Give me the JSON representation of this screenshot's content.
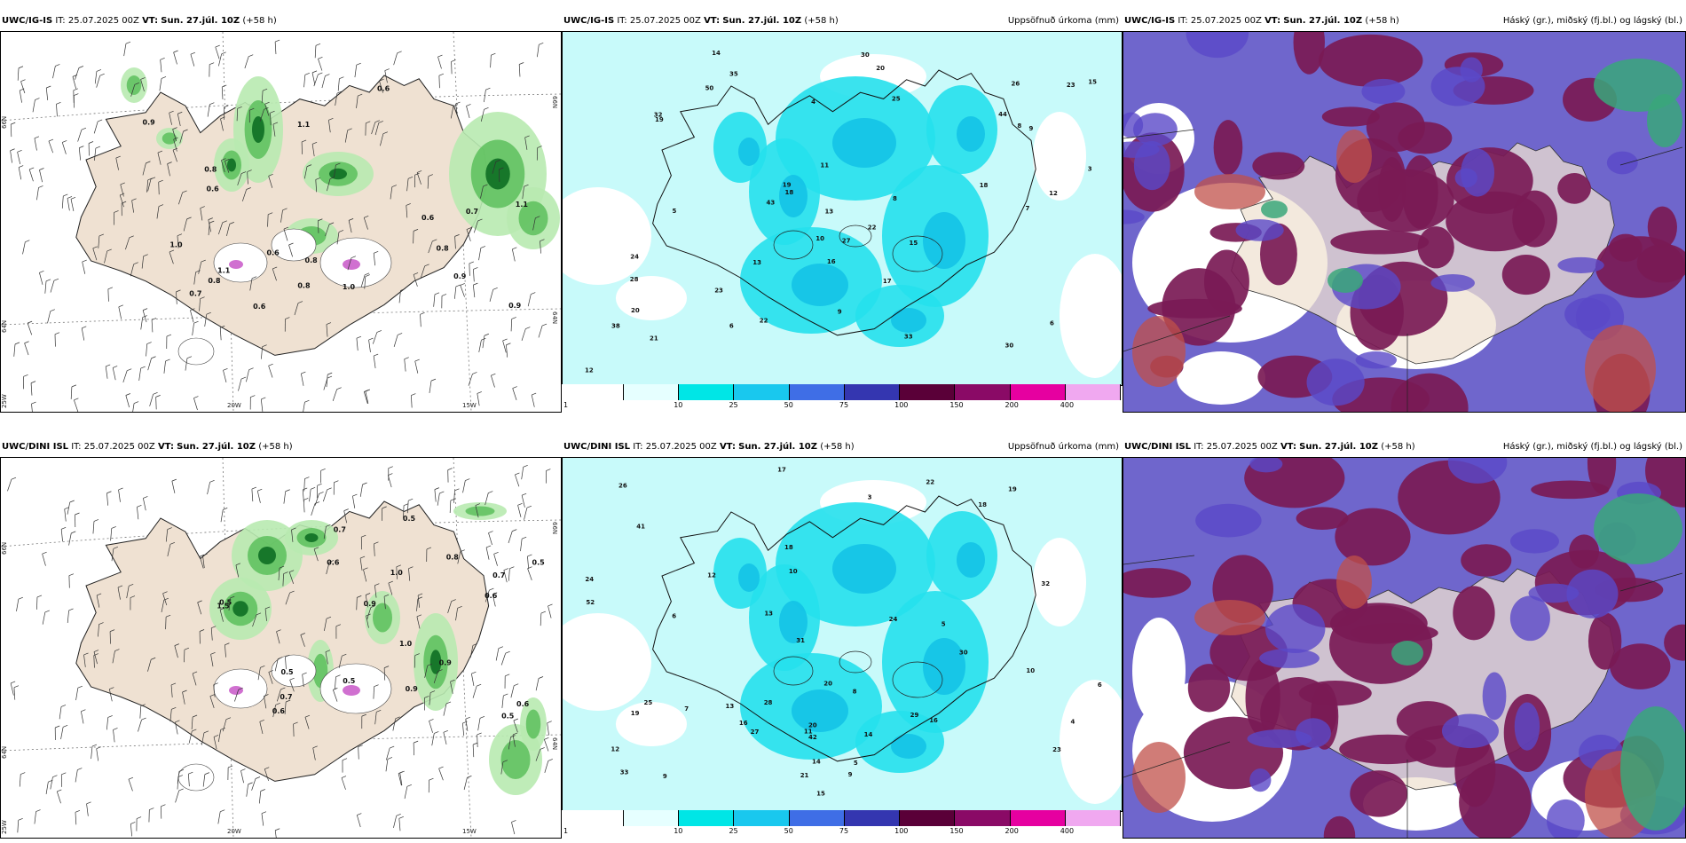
{
  "rows": [
    {
      "model": "UWC/IG-IS",
      "panels": [
        {
          "kind": "wind",
          "title_model": "UWC/IG-IS",
          "it_label": "IT:",
          "it_value": "25.07.2025 00Z",
          "vt_label": "VT:",
          "vt_value": "Sun. 27.júl. 10Z",
          "lead": "(+58 h)",
          "right_title": "",
          "axis": {
            "lat_top": "66N",
            "lat_mid": "64N",
            "lat_bot": "25W",
            "lon_a": "20W",
            "lon_b": "15W",
            "lat_top_r": "66N",
            "lat_mid_r": "64N"
          }
        },
        {
          "kind": "precip",
          "title_model": "UWC/IG-IS",
          "it_label": "IT:",
          "it_value": "25.07.2025 00Z",
          "vt_label": "VT:",
          "vt_value": "Sun. 27.júl. 10Z",
          "lead": "(+58 h)",
          "right_title": "Uppsöfnuð úrkoma (mm)"
        },
        {
          "kind": "cloud",
          "title_model": "UWC/IG-IS",
          "it_label": "IT:",
          "it_value": "25.07.2025 00Z",
          "vt_label": "VT:",
          "vt_value": "Sun. 27.júl. 10Z",
          "lead": "(+58 h)",
          "right_title": "Háský (gr.), miðský (fj.bl.) og lágský (bl.)"
        }
      ]
    },
    {
      "model": "UWC/DINI ISL",
      "panels": [
        {
          "kind": "wind",
          "title_model": "UWC/DINI ISL",
          "it_label": "IT:",
          "it_value": "25.07.2025 00Z",
          "vt_label": "VT:",
          "vt_value": "Sun. 27.júl. 10Z",
          "lead": "(+58 h)",
          "right_title": "",
          "axis": {
            "lat_top": "66N",
            "lat_mid": "64N",
            "lat_bot": "25W",
            "lon_a": "20W",
            "lon_b": "15W",
            "lat_top_r": "66N",
            "lat_mid_r": "64N"
          }
        },
        {
          "kind": "precip",
          "title_model": "UWC/DINI ISL",
          "it_label": "IT:",
          "it_value": "25.07.2025 00Z",
          "vt_label": "VT:",
          "vt_value": "Sun. 27.júl. 10Z",
          "lead": "(+58 h)",
          "right_title": "Uppsöfnuð úrkoma (mm)"
        },
        {
          "kind": "cloud",
          "title_model": "UWC/DINI ISL",
          "it_label": "IT:",
          "it_value": "25.07.2025 00Z",
          "vt_label": "VT:",
          "vt_value": "Sun. 27.júl. 10Z",
          "lead": "(+58 h)",
          "right_title": "Háský (gr.), miðský (fj.bl.) og lágský (bl.)"
        }
      ]
    }
  ],
  "colorbar": {
    "ticks": [
      "1",
      "10",
      "25",
      "50",
      "75",
      "100",
      "150",
      "200",
      "400"
    ],
    "colors": [
      "#e6ffff",
      "#00e6e6",
      "#19c8ee",
      "#3f6ee6",
      "#3436b0",
      "#5a0038",
      "#8a0a66",
      "#e600a0",
      "#f0a8f0"
    ]
  },
  "wind_labels_top": [
    "0.6",
    "1.1",
    "0.8",
    "0.7",
    "1.0",
    "0.6",
    "1.1",
    "0.8",
    "1.0",
    "0.9",
    "0.8",
    "0.6",
    "0.9",
    "0.8",
    "0.6",
    "1.1",
    "0.6",
    "0.7",
    "0.8",
    "0.9"
  ],
  "wind_labels_bot": [
    "0.5",
    "0.7",
    "0.6",
    "0.5",
    "1.0",
    "0.8",
    "0.9",
    "0.5",
    "1.5",
    "1.0",
    "0.7",
    "0.6",
    "0.5",
    "0.9",
    "0.7",
    "0.6",
    "0.5",
    "0.9",
    "0.6",
    "0.5"
  ],
  "precip_labels_top": [
    "50",
    "12",
    "18",
    "30",
    "28",
    "19",
    "8",
    "6",
    "13",
    "23",
    "44",
    "35",
    "32",
    "15",
    "22",
    "20",
    "21",
    "8",
    "30",
    "33",
    "24",
    "19",
    "18",
    "11",
    "10",
    "6",
    "23",
    "38",
    "43",
    "26",
    "22",
    "16",
    "9",
    "14",
    "17",
    "25",
    "27",
    "12",
    "13",
    "15",
    "20",
    "4",
    "3",
    "5",
    "7",
    "9"
  ],
  "precip_labels_bot": [
    "13",
    "12",
    "14",
    "10",
    "16",
    "26",
    "24",
    "17",
    "19",
    "9",
    "5",
    "41",
    "29",
    "20",
    "13",
    "18",
    "15",
    "22",
    "32",
    "23",
    "24",
    "27",
    "25",
    "10",
    "11",
    "14",
    "21",
    "8",
    "7",
    "6",
    "4",
    "30",
    "42",
    "52",
    "28",
    "19",
    "33",
    "31",
    "16",
    "20",
    "12",
    "18",
    "9",
    "6",
    "5",
    "3"
  ]
}
